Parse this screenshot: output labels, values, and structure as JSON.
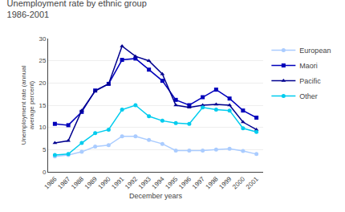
{
  "chart_data": {
    "type": "line",
    "title": "Unemployment rate by ethnic group",
    "subtitle": "1986-2001",
    "x_label": "December years",
    "y_label": "Unemployment rate (annual\naverage percent)",
    "x": [
      1986,
      1987,
      1988,
      1989,
      1990,
      1991,
      1992,
      1993,
      1994,
      1995,
      1996,
      1997,
      1998,
      1999,
      2000,
      2001
    ],
    "series": [
      {
        "name": "European",
        "color": "#aaccff",
        "marker": "circle",
        "values": [
          3.5,
          3.8,
          4.5,
          5.7,
          6.0,
          8.0,
          8.0,
          7.2,
          6.3,
          4.8,
          4.8,
          4.8,
          5.0,
          5.2,
          4.7,
          4.0
        ]
      },
      {
        "name": "Maori",
        "color": "#0000bb",
        "marker": "square",
        "values": [
          10.8,
          10.5,
          13.5,
          18.3,
          19.8,
          25.2,
          25.5,
          23.0,
          20.5,
          16.2,
          15.0,
          16.8,
          18.5,
          16.5,
          13.8,
          12.2
        ]
      },
      {
        "name": "Pacific",
        "color": "#00008f",
        "marker": "triangle-up",
        "values": [
          6.5,
          7.0,
          13.8,
          18.2,
          19.8,
          28.3,
          26.0,
          25.0,
          22.0,
          15.0,
          14.5,
          15.0,
          15.2,
          15.0,
          11.2,
          9.5
        ]
      },
      {
        "name": "Other",
        "color": "#00ccee",
        "marker": "circle",
        "values": [
          3.8,
          4.0,
          6.5,
          8.7,
          9.5,
          14.0,
          15.0,
          12.5,
          11.5,
          11.0,
          10.8,
          14.5,
          14.0,
          13.8,
          9.8,
          9.0
        ]
      }
    ],
    "xlim": [
      1985.5,
      2001.5
    ],
    "xticks": [
      1986,
      1987,
      1988,
      1989,
      1990,
      1991,
      1992,
      1993,
      1994,
      1995,
      1996,
      1997,
      1998,
      1999,
      2000,
      2001
    ],
    "ylim": [
      0,
      30
    ],
    "yticks": [
      0,
      5,
      10,
      15,
      20,
      25,
      30
    ],
    "grid": "y",
    "legend": "upper right"
  }
}
